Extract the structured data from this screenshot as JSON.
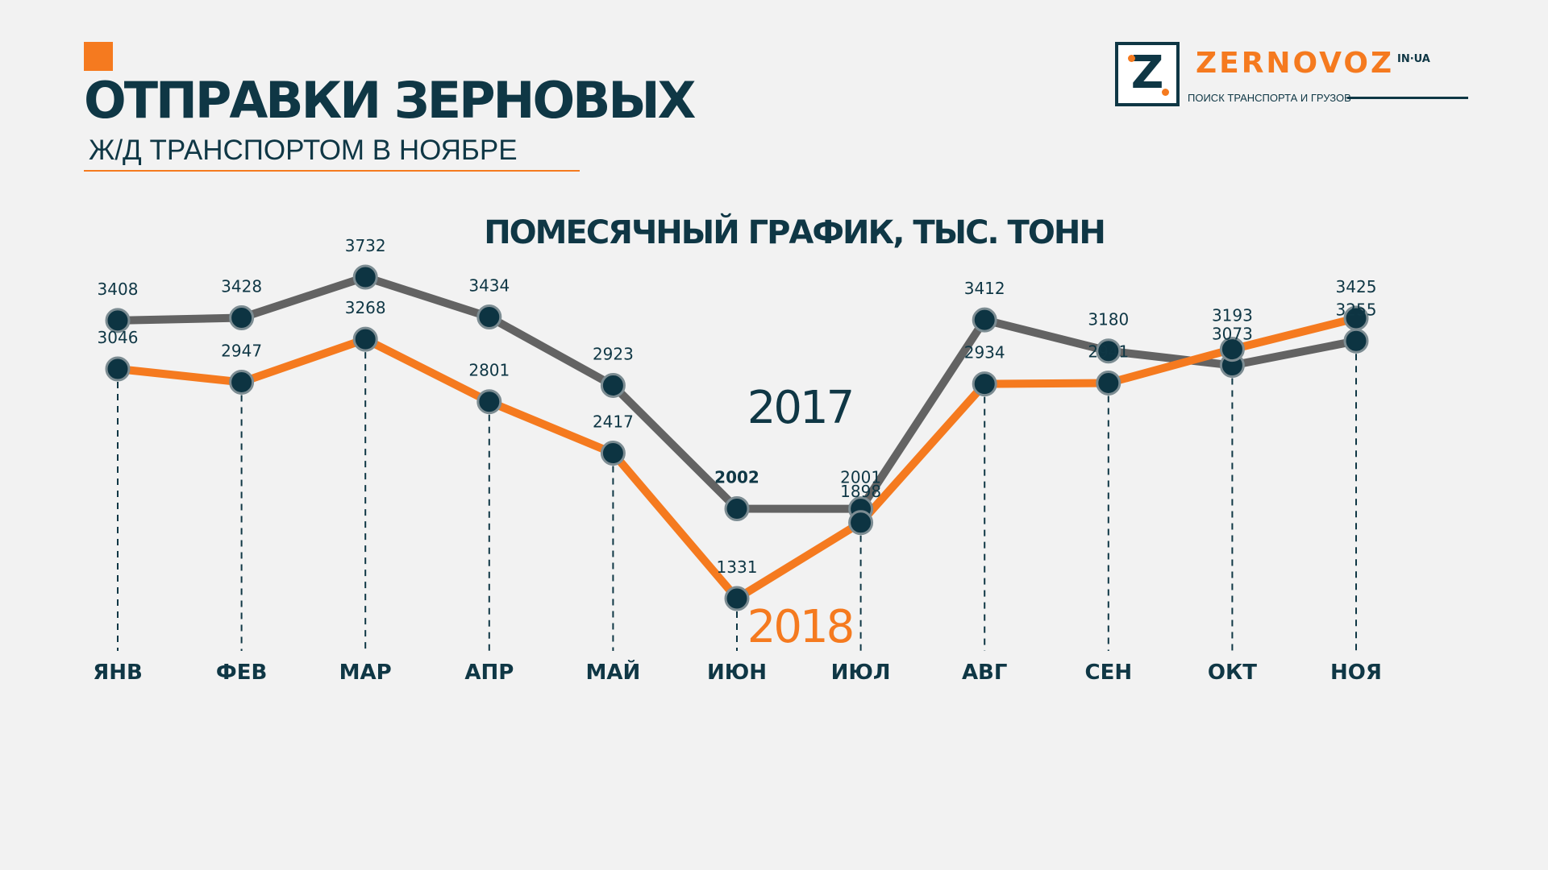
{
  "header": {
    "title": "ОТПРАВКИ ЗЕРНОВЫХ",
    "subtitle": "Ж/Д ТРАНСПОРТОМ В НОЯБРЕ"
  },
  "logo": {
    "letter": "Z",
    "name": "ZERNOVOZ",
    "suffix": "IN·UA",
    "tagline": "ПОИСК ТРАНСПОРТА И ГРУЗОВ"
  },
  "colors": {
    "accent": "#f57a1f",
    "dark": "#0f3745",
    "series_2017": "#636363",
    "series_2018": "#f57a1f",
    "background": "#f2f2f2"
  },
  "chart_data": {
    "type": "line",
    "title": "ПОМЕСЯЧНЫЙ ГРАФИК, ТЫС. ТОНН",
    "categories": [
      "ЯНВ",
      "ФЕВ",
      "МАР",
      "АПР",
      "МАЙ",
      "ИЮН",
      "ИЮЛ",
      "АВГ",
      "СЕН",
      "ОКТ",
      "НОЯ"
    ],
    "series": [
      {
        "name": "2017",
        "values": [
          3408,
          3428,
          3732,
          3434,
          2923,
          2002,
          2001,
          3412,
          3180,
          3073,
          3255
        ]
      },
      {
        "name": "2018",
        "values": [
          3046,
          2947,
          3268,
          2801,
          2417,
          1331,
          1898,
          2934,
          2941,
          3193,
          3425
        ]
      }
    ],
    "legend": "inline labels",
    "grid": false,
    "drop_lines": true
  }
}
